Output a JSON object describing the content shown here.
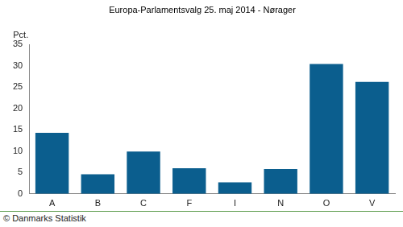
{
  "chart_data": {
    "type": "bar",
    "title": "Europa-Parlamentsvalg 25. maj 2014 - Nørager",
    "y_label": "Pct.",
    "categories": [
      "A",
      "B",
      "C",
      "F",
      "I",
      "N",
      "O",
      "V"
    ],
    "values": [
      14.3,
      4.6,
      9.9,
      6.0,
      2.7,
      5.8,
      30.4,
      26.2
    ],
    "color": "#0b5e8e",
    "ylim": [
      0,
      35
    ],
    "yticks": [
      0,
      5,
      10,
      15,
      20,
      25,
      30,
      35
    ],
    "grid": false,
    "source": "© Danmarks Statistik"
  }
}
